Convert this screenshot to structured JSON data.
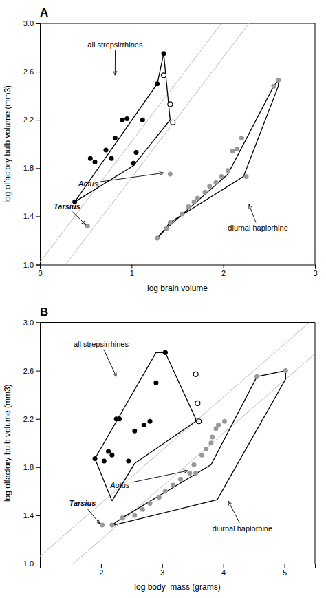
{
  "chart_data": [
    {
      "type": "scatter",
      "title": "A",
      "xlabel": "log brain volume",
      "ylabel": "log olfactory bulb volume (mm3)",
      "xlim": [
        0,
        3
      ],
      "ylim": [
        1,
        3
      ],
      "xticks": [
        0,
        1,
        2,
        3
      ],
      "yticks": [
        {
          "value": 1,
          "label": "1.0"
        },
        1.4,
        1.8,
        2.2,
        2.6,
        {
          "value": 3,
          "label": "3.0"
        }
      ],
      "reference_lines": [
        {
          "slope": 1,
          "intercept": 0.72,
          "color": "#bbbbbb"
        },
        {
          "slope": 1,
          "intercept": 1.02,
          "color": "#bbbbbb"
        }
      ],
      "series": [
        {
          "type": "line",
          "color": "#000000",
          "x": [
            0.38,
            0.38,
            1.28,
            1.35,
            1.42,
            1.02,
            0.38
          ],
          "values": [
            1.52,
            1.52,
            2.5,
            2.75,
            2.2,
            1.82,
            1.52
          ]
        },
        {
          "type": "line",
          "color": "#000000",
          "x": [
            1.28,
            1.38,
            2.05,
            2.55,
            2.6,
            2.6,
            2.22,
            1.42,
            1.28
          ],
          "values": [
            1.22,
            1.3,
            1.75,
            2.48,
            2.53,
            2.48,
            1.73,
            1.35,
            1.22
          ]
        },
        {
          "type": "scatter",
          "color": "#000000",
          "marker": "circle",
          "x": [
            0.38,
            0.55,
            0.6,
            0.72,
            0.78,
            0.82,
            0.9,
            0.95,
            1.02,
            1.05,
            1.12,
            1.28
          ],
          "values": [
            1.52,
            1.88,
            1.85,
            1.95,
            1.88,
            2.05,
            2.2,
            2.21,
            1.84,
            1.93,
            2.2,
            2.5
          ]
        },
        {
          "type": "scatter",
          "color": "#000000",
          "marker": "circle",
          "x": [
            1.35
          ],
          "values": [
            2.75
          ]
        },
        {
          "type": "scatter",
          "color": "#000000",
          "marker": "open-circle",
          "x": [
            1.35,
            1.42,
            1.45
          ],
          "values": [
            2.57,
            2.33,
            2.18
          ]
        },
        {
          "type": "scatter",
          "color": "#999999",
          "marker": "circle",
          "x": [
            1.28,
            1.38,
            1.42,
            1.55,
            1.62,
            1.68,
            1.72,
            1.8,
            1.85,
            1.92,
            1.98,
            2.05,
            2.1,
            2.15,
            2.2,
            2.25,
            2.55,
            2.6
          ],
          "values": [
            1.22,
            1.3,
            1.35,
            1.42,
            1.48,
            1.52,
            1.55,
            1.6,
            1.65,
            1.68,
            1.73,
            1.78,
            1.94,
            1.96,
            2.05,
            1.73,
            2.48,
            2.53
          ]
        },
        {
          "type": "scatter",
          "color": "#999999",
          "marker": "circle",
          "x": [
            0.52
          ],
          "values": [
            1.32
          ]
        },
        {
          "type": "scatter",
          "color": "#999999",
          "marker": "circle",
          "x": [
            1.42
          ],
          "values": [
            1.75
          ]
        }
      ],
      "annotations": [
        {
          "text": "all strepsirrhines",
          "x": 0.52,
          "y": 2.8,
          "arrow_x": 0.82,
          "arrow_y": 2.57
        },
        {
          "text": "Aotus",
          "x": 0.42,
          "y": 1.65,
          "arrow_x": 1.35,
          "arrow_y": 1.76,
          "font_style": "italic"
        },
        {
          "text": "Tarsius",
          "x": 0.15,
          "y": 1.46,
          "arrow_x": 0.5,
          "arrow_y": 1.33,
          "font_style": "bold italic"
        },
        {
          "text": "diurnal haplorhine",
          "x": 2.05,
          "y": 1.28,
          "arrow_x": 2.28,
          "arrow_y": 1.5
        }
      ]
    },
    {
      "type": "scatter",
      "title": "B",
      "xlabel": "log body  mass (grams)",
      "ylabel": "log olfactory bulb volume (mm3)",
      "xlim": [
        1,
        5.5
      ],
      "ylim": [
        1,
        3
      ],
      "xticks": [
        2,
        3,
        4,
        5
      ],
      "yticks": [
        {
          "value": 1,
          "label": "1.0"
        },
        1.4,
        1.8,
        2.2,
        2.6,
        {
          "value": 3,
          "label": "3.0"
        }
      ],
      "reference_lines": [
        {
          "slope": 0.44,
          "intercept": 0.32,
          "color": "#bbbbbb"
        },
        {
          "slope": 0.44,
          "intercept": 0.62,
          "color": "#bbbbbb"
        }
      ],
      "series": [
        {
          "type": "line",
          "color": "#000000",
          "x": [
            2.18,
            1.9,
            2.9,
            3.05,
            3.55,
            3.55,
            2.55,
            2.18
          ],
          "values": [
            1.52,
            1.87,
            2.75,
            2.75,
            2.2,
            2.18,
            1.83,
            1.52
          ]
        },
        {
          "type": "line",
          "color": "#000000",
          "x": [
            2.18,
            2.35,
            3.8,
            4.55,
            5.02,
            5.02,
            3.9,
            2.22,
            2.18
          ],
          "values": [
            1.32,
            1.38,
            1.82,
            2.55,
            2.6,
            2.53,
            1.53,
            1.32,
            1.32
          ]
        },
        {
          "type": "scatter",
          "color": "#000000",
          "marker": "circle",
          "x": [
            1.9,
            2.05,
            2.12,
            2.18,
            2.25,
            2.3,
            2.45,
            2.55,
            2.7,
            2.8,
            2.9,
            3.05
          ],
          "values": [
            1.87,
            1.85,
            1.93,
            1.9,
            2.2,
            2.2,
            1.85,
            2.1,
            2.15,
            2.18,
            2.5,
            2.75
          ]
        },
        {
          "type": "scatter",
          "color": "#000000",
          "marker": "circle",
          "x": [
            3.05
          ],
          "values": [
            2.75
          ]
        },
        {
          "type": "scatter",
          "color": "#000000",
          "marker": "open-circle",
          "x": [
            3.55,
            3.58,
            3.6
          ],
          "values": [
            2.57,
            2.33,
            2.18
          ]
        },
        {
          "type": "scatter",
          "color": "#999999",
          "marker": "circle",
          "x": [
            2.18,
            2.35,
            2.55,
            2.68,
            2.8,
            2.95,
            3.05,
            3.18,
            3.3,
            3.45,
            3.52,
            3.65,
            3.72,
            3.8,
            3.82,
            3.88,
            3.92,
            4.02,
            4.55,
            5.02
          ],
          "values": [
            1.32,
            1.38,
            1.4,
            1.45,
            1.5,
            1.55,
            1.6,
            1.65,
            1.7,
            1.75,
            1.82,
            1.9,
            1.95,
            2.0,
            2.05,
            2.12,
            2.15,
            2.18,
            2.55,
            2.6
          ]
        },
        {
          "type": "scatter",
          "color": "#999999",
          "marker": "circle",
          "x": [
            2.02
          ],
          "values": [
            1.32
          ]
        },
        {
          "type": "scatter",
          "color": "#999999",
          "marker": "circle",
          "x": [
            3.55
          ],
          "values": [
            1.75
          ]
        }
      ],
      "annotations": [
        {
          "text": "all strepsirrhines",
          "x": 1.55,
          "y": 2.8,
          "arrow_x": 2.25,
          "arrow_y": 2.55
        },
        {
          "text": "Aotus",
          "x": 2.15,
          "y": 1.63,
          "arrow_x": 3.42,
          "arrow_y": 1.77,
          "font_style": "italic"
        },
        {
          "text": "Tarsius",
          "x": 1.48,
          "y": 1.48,
          "arrow_x": 1.98,
          "arrow_y": 1.33,
          "font_style": "bold italic"
        },
        {
          "text": "diurnal haplorhine",
          "x": 3.82,
          "y": 1.27,
          "arrow_x": 4.08,
          "arrow_y": 1.52
        }
      ]
    }
  ]
}
